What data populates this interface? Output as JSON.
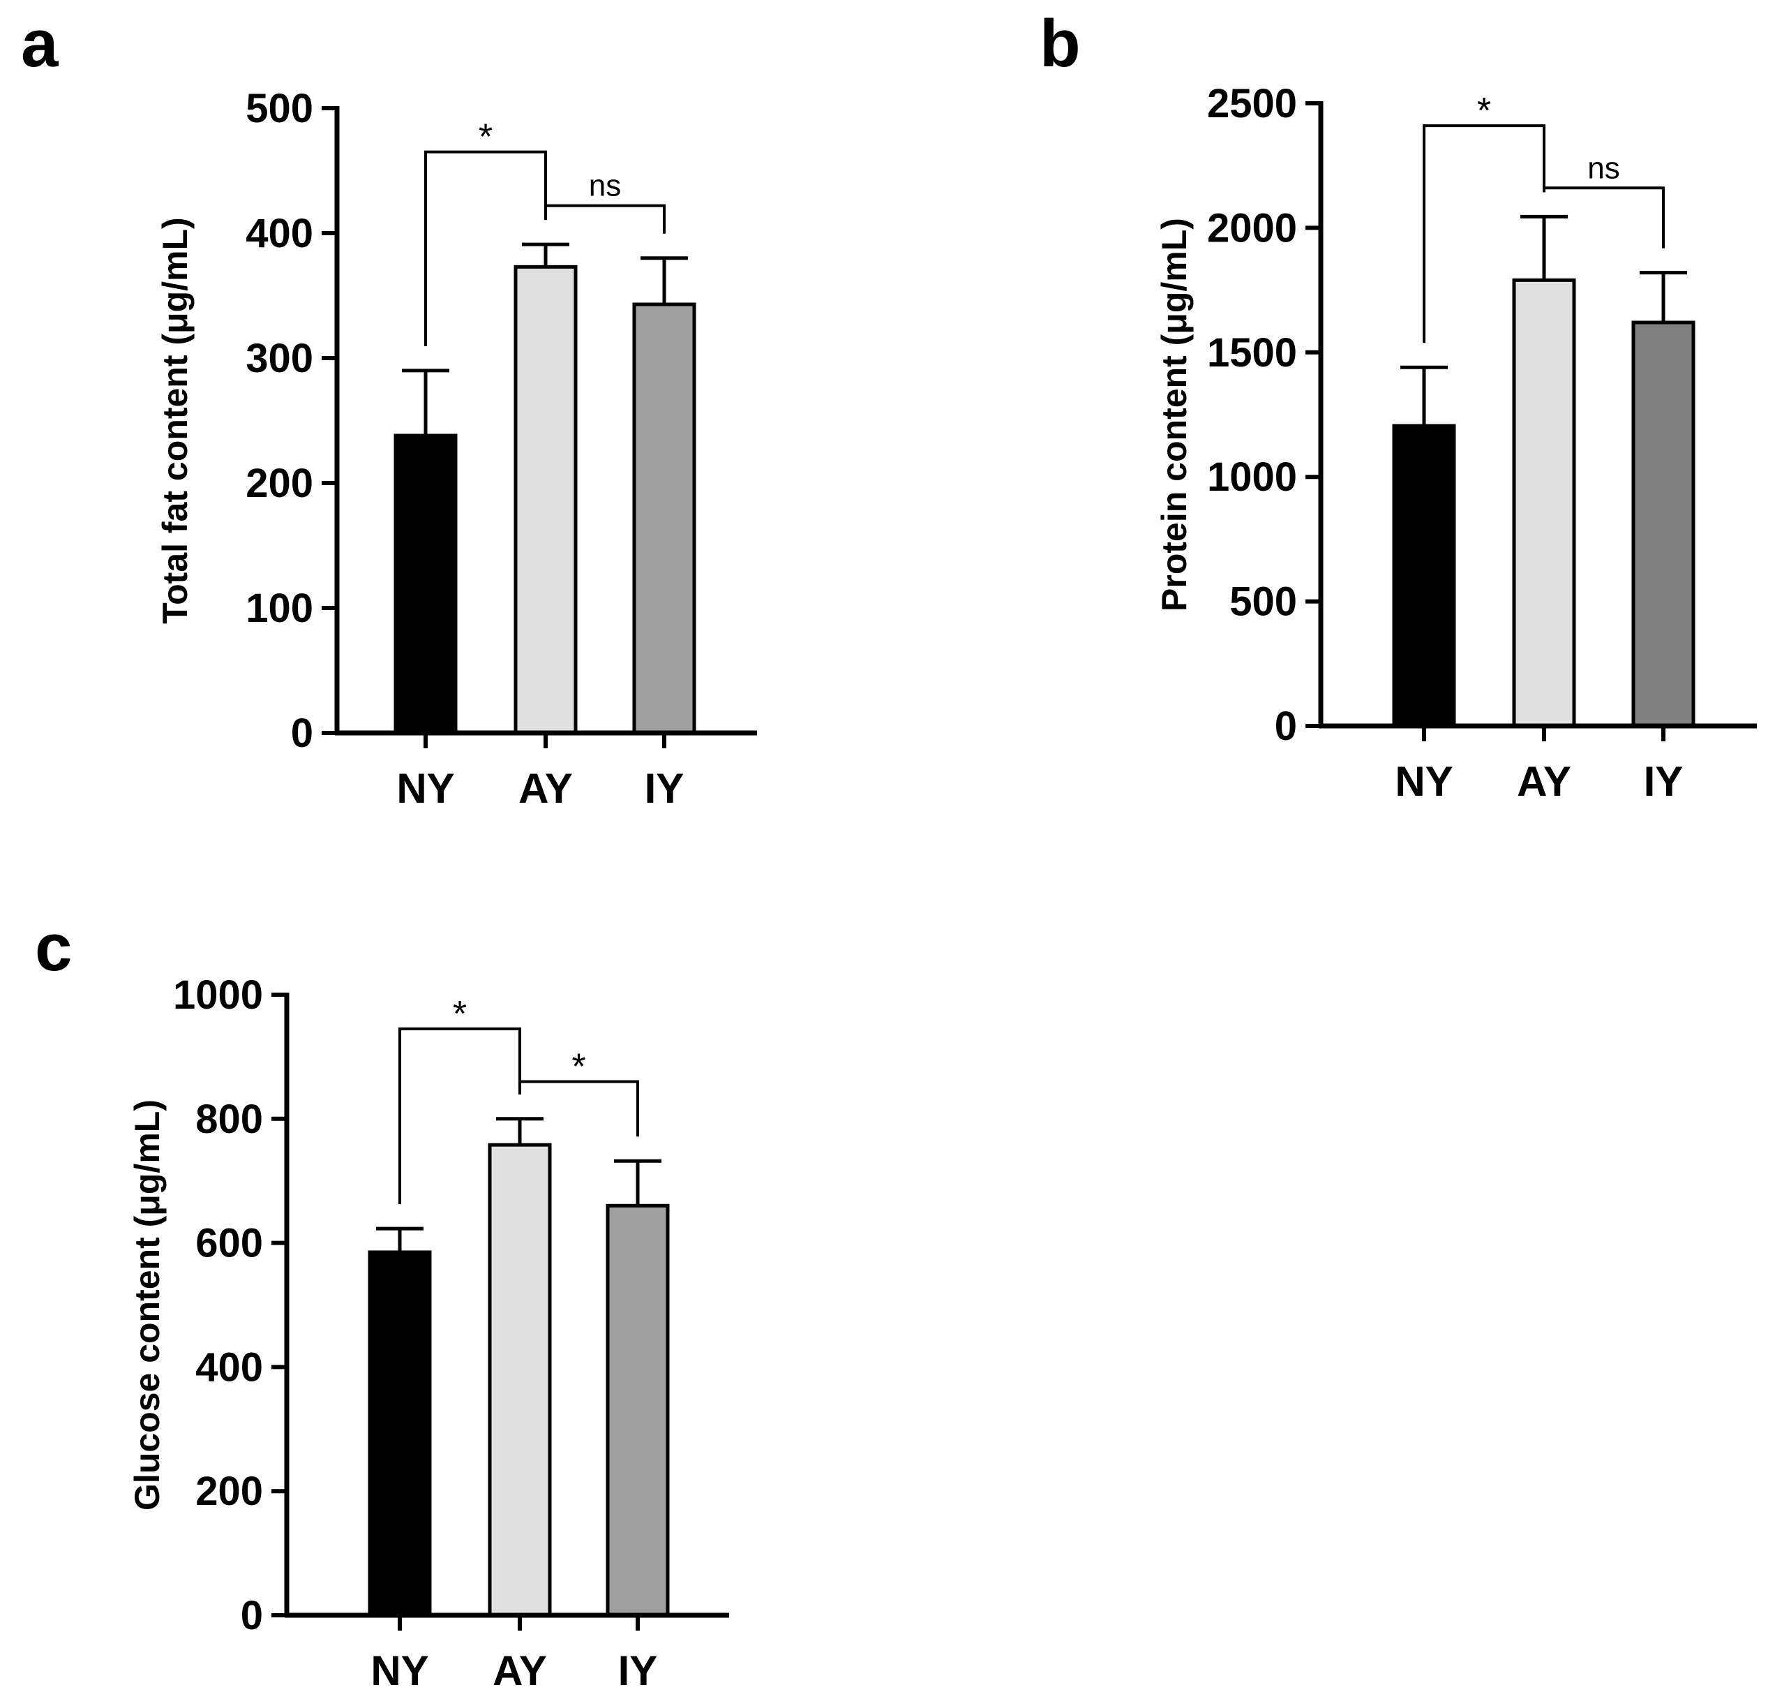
{
  "chart_data": [
    {
      "panel": "a",
      "type": "bar",
      "categories": [
        "NY",
        "AY",
        "IY"
      ],
      "values": [
        238,
        373,
        343
      ],
      "errors": [
        52,
        18,
        37
      ],
      "colors": [
        "#000000",
        "#e0e0e0",
        "#a0a0a0"
      ],
      "ylabel": "Total fat content (μg/mL)",
      "xlabel": "",
      "ylim": [
        0,
        500
      ],
      "yticks": [
        0,
        100,
        200,
        300,
        400,
        500
      ],
      "significance": [
        {
          "from": 0,
          "to": 1,
          "label": "*",
          "y": 465
        },
        {
          "from": 1,
          "to": 2,
          "label": "ns",
          "y": 422
        }
      ]
    },
    {
      "panel": "b",
      "type": "bar",
      "categories": [
        "NY",
        "AY",
        "IY"
      ],
      "values": [
        1205,
        1790,
        1620
      ],
      "errors": [
        235,
        255,
        200
      ],
      "colors": [
        "#000000",
        "#e0e0e0",
        "#808080"
      ],
      "ylabel": "Protein content (μg/mL)",
      "xlabel": "",
      "ylim": [
        0,
        2500
      ],
      "yticks": [
        0,
        500,
        1000,
        1500,
        2000,
        2500
      ],
      "significance": [
        {
          "from": 0,
          "to": 1,
          "label": "*",
          "y": 2410
        },
        {
          "from": 1,
          "to": 2,
          "label": "ns",
          "y": 2160
        }
      ]
    },
    {
      "panel": "c",
      "type": "bar",
      "categories": [
        "NY",
        "AY",
        "IY"
      ],
      "values": [
        585,
        758,
        660
      ],
      "errors": [
        38,
        42,
        72
      ],
      "colors": [
        "#000000",
        "#e0e0e0",
        "#a0a0a0"
      ],
      "ylabel": "Glucose content (μg/mL)",
      "xlabel": "",
      "ylim": [
        0,
        1000
      ],
      "yticks": [
        0,
        200,
        400,
        600,
        800,
        1000
      ],
      "significance": [
        {
          "from": 0,
          "to": 1,
          "label": "*",
          "y": 945
        },
        {
          "from": 1,
          "to": 2,
          "label": "*",
          "y": 860
        }
      ]
    }
  ]
}
